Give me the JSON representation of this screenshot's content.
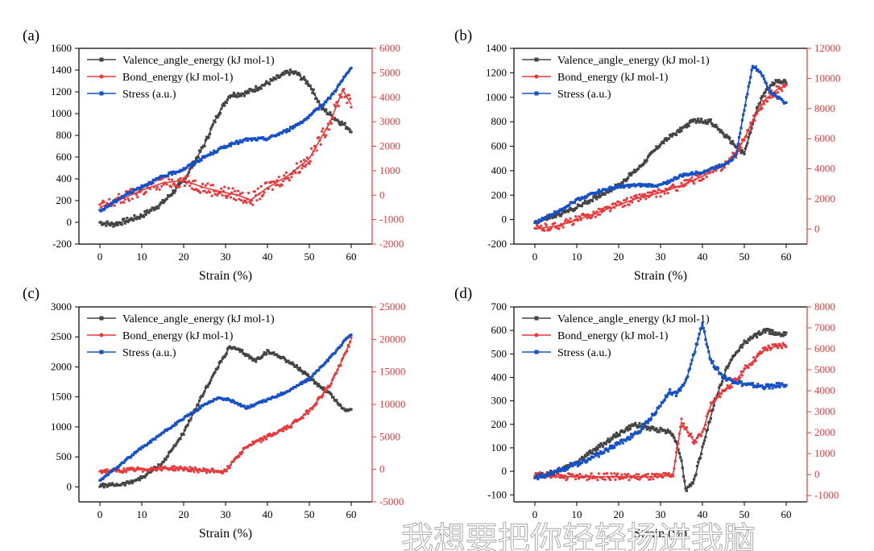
{
  "colors": {
    "valence": "#444444",
    "bond": "#e8383a",
    "stress": "#1550c8",
    "axis": "#000000"
  },
  "watermark": "我想要把你轻轻扬进我脑",
  "chart_data": [
    {
      "type": "line",
      "panel": "(a)",
      "xlabel": "Strain (%)",
      "xlim": [
        -5,
        65
      ],
      "xticks": [
        0,
        10,
        20,
        30,
        40,
        50,
        60
      ],
      "ylim_left": [
        -200,
        1600
      ],
      "yticks_left": [
        -200,
        0,
        200,
        400,
        600,
        800,
        1000,
        1200,
        1400,
        1600
      ],
      "ylim_right": [
        -2000,
        6000
      ],
      "yticks_right": [
        -2000,
        -1000,
        0,
        1000,
        2000,
        3000,
        4000,
        5000,
        6000
      ],
      "legend_position": "top-left",
      "series": [
        {
          "name": "Valence_angle_energy (kJ mol-1)",
          "axis": "left",
          "x": [
            0,
            3,
            6,
            10,
            15,
            20,
            25,
            28,
            31,
            35,
            40,
            45,
            47,
            50,
            53,
            56,
            60
          ],
          "y": [
            0,
            -20,
            10,
            60,
            180,
            380,
            720,
            980,
            1170,
            1190,
            1280,
            1380,
            1370,
            1270,
            1050,
            960,
            850
          ]
        },
        {
          "name": "Bond_energy (kJ mol-1)",
          "axis": "right",
          "x": [
            0,
            3,
            6,
            10,
            15,
            20,
            25,
            30,
            33,
            36,
            40,
            45,
            50,
            55,
            58,
            60
          ],
          "y": [
            -500,
            -300,
            -100,
            200,
            500,
            600,
            300,
            100,
            0,
            -200,
            300,
            800,
            1500,
            3000,
            4300,
            3700
          ]
        },
        {
          "name": "Stress (a.u.)",
          "axis": "left",
          "x": [
            0,
            5,
            10,
            15,
            20,
            25,
            30,
            35,
            40,
            45,
            50,
            55,
            60
          ],
          "y": [
            100,
            230,
            330,
            420,
            490,
            600,
            700,
            760,
            770,
            850,
            970,
            1150,
            1420
          ]
        }
      ]
    },
    {
      "type": "line",
      "panel": "(b)",
      "xlabel": "Strain (%)",
      "xlim": [
        -5,
        65
      ],
      "xticks": [
        0,
        10,
        20,
        30,
        40,
        50,
        60
      ],
      "ylim_left": [
        -200,
        1400
      ],
      "yticks_left": [
        -200,
        0,
        200,
        400,
        600,
        800,
        1000,
        1200,
        1400
      ],
      "ylim_right": [
        -1000,
        12000
      ],
      "yticks_right": [
        0,
        2000,
        4000,
        6000,
        8000,
        10000,
        12000
      ],
      "legend_position": "top-left",
      "series": [
        {
          "name": "Valence_angle_energy (kJ mol-1)",
          "axis": "left",
          "x": [
            0,
            5,
            10,
            15,
            20,
            25,
            30,
            35,
            38,
            42,
            45,
            48,
            50,
            53,
            55,
            58,
            60
          ],
          "y": [
            -20,
            30,
            100,
            190,
            280,
            430,
            620,
            740,
            810,
            800,
            700,
            600,
            540,
            900,
            1050,
            1140,
            1120
          ]
        },
        {
          "name": "Bond_energy (kJ mol-1)",
          "axis": "right",
          "x": [
            0,
            5,
            10,
            15,
            20,
            25,
            30,
            35,
            40,
            45,
            48,
            50,
            52,
            55,
            58,
            60
          ],
          "y": [
            0,
            200,
            600,
            1100,
            1600,
            2100,
            2400,
            2900,
            3500,
            4200,
            5000,
            6000,
            7200,
            8600,
            9300,
            9500
          ]
        },
        {
          "name": "Stress (a.u.)",
          "axis": "left",
          "x": [
            0,
            5,
            10,
            15,
            20,
            25,
            30,
            35,
            40,
            45,
            48,
            50,
            52,
            54,
            56,
            58,
            60
          ],
          "y": [
            -30,
            60,
            160,
            230,
            270,
            280,
            280,
            360,
            390,
            450,
            520,
            900,
            1260,
            1200,
            1050,
            1000,
            950
          ]
        }
      ]
    },
    {
      "type": "line",
      "panel": "(c)",
      "xlabel": "Strain (%)",
      "xlim": [
        -5,
        65
      ],
      "xticks": [
        0,
        10,
        20,
        30,
        40,
        50,
        60
      ],
      "ylim_left": [
        -250,
        3000
      ],
      "yticks_left": [
        0,
        500,
        1000,
        1500,
        2000,
        2500,
        3000
      ],
      "ylim_right": [
        -5000,
        25000
      ],
      "yticks_right": [
        -5000,
        0,
        5000,
        10000,
        15000,
        20000,
        25000
      ],
      "legend_position": "top-left",
      "series": [
        {
          "name": "Valence_angle_energy (kJ mol-1)",
          "axis": "left",
          "x": [
            0,
            3,
            6,
            10,
            15,
            20,
            25,
            29,
            31,
            34,
            37,
            40,
            43,
            47,
            50,
            55,
            58,
            60
          ],
          "y": [
            20,
            30,
            50,
            150,
            400,
            900,
            1600,
            2100,
            2330,
            2250,
            2100,
            2250,
            2180,
            2000,
            1820,
            1550,
            1300,
            1280
          ]
        },
        {
          "name": "Bond_energy (kJ mol-1)",
          "axis": "right",
          "x": [
            0,
            5,
            10,
            15,
            20,
            25,
            30,
            32,
            35,
            40,
            45,
            50,
            55,
            58,
            60
          ],
          "y": [
            -300,
            -200,
            0,
            200,
            100,
            -200,
            -300,
            1500,
            3500,
            5000,
            6500,
            9000,
            13000,
            17000,
            20000
          ]
        },
        {
          "name": "Stress (a.u.)",
          "axis": "left",
          "x": [
            0,
            5,
            10,
            15,
            20,
            25,
            28,
            31,
            35,
            40,
            45,
            50,
            55,
            58,
            60
          ],
          "y": [
            100,
            380,
            650,
            900,
            1140,
            1370,
            1480,
            1450,
            1320,
            1450,
            1600,
            1800,
            2150,
            2400,
            2550
          ]
        }
      ]
    },
    {
      "type": "line",
      "panel": "(d)",
      "xlabel": "Strain (%)",
      "xlim": [
        -5,
        65
      ],
      "xticks": [
        0,
        10,
        20,
        30,
        40,
        50,
        60
      ],
      "ylim_left": [
        -130,
        700
      ],
      "yticks_left": [
        -100,
        0,
        100,
        200,
        300,
        400,
        500,
        600,
        700
      ],
      "ylim_right": [
        -1300,
        8000
      ],
      "yticks_right": [
        -1000,
        0,
        1000,
        2000,
        3000,
        4000,
        5000,
        6000,
        7000,
        8000
      ],
      "legend_position": "top-left",
      "series": [
        {
          "name": "Valence_angle_energy (kJ mol-1)",
          "axis": "left",
          "x": [
            0,
            5,
            10,
            15,
            20,
            24,
            28,
            31,
            33,
            35,
            36,
            38,
            40,
            43,
            46,
            50,
            55,
            60
          ],
          "y": [
            -20,
            0,
            40,
            100,
            160,
            200,
            180,
            175,
            160,
            50,
            -80,
            -40,
            100,
            300,
            450,
            550,
            600,
            580
          ]
        },
        {
          "name": "Bond_energy (kJ mol-1)",
          "axis": "right",
          "x": [
            0,
            5,
            10,
            15,
            20,
            25,
            30,
            33,
            35,
            36,
            38,
            40,
            42,
            45,
            48,
            50,
            55,
            60
          ],
          "y": [
            0,
            -100,
            -100,
            -100,
            -100,
            -100,
            -100,
            0,
            2500,
            2200,
            1600,
            2000,
            3300,
            4000,
            4500,
            5000,
            6000,
            6200
          ]
        },
        {
          "name": "Stress (a.u.)",
          "axis": "left",
          "x": [
            0,
            5,
            10,
            15,
            20,
            25,
            30,
            32,
            34,
            36,
            38,
            40,
            42,
            45,
            50,
            55,
            60
          ],
          "y": [
            -30,
            0,
            30,
            70,
            120,
            170,
            280,
            340,
            330,
            380,
            500,
            630,
            470,
            400,
            370,
            360,
            370
          ]
        }
      ]
    }
  ]
}
